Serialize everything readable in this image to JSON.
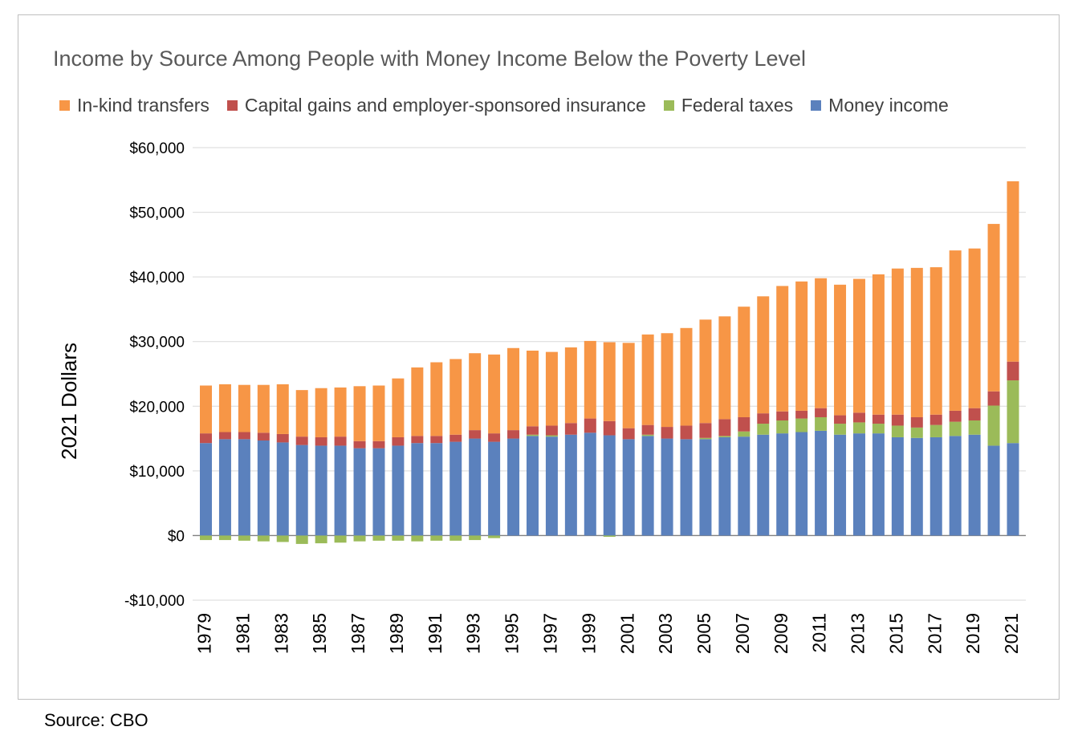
{
  "source": "Source: CBO",
  "chart_data": {
    "type": "bar",
    "stacked": true,
    "title": "Income by Source Among People with Money Income Below the Poverty Level",
    "xlabel": "",
    "ylabel": "2021 Dollars",
    "ylim": [
      -10000,
      60000
    ],
    "yticks": [
      -10000,
      0,
      10000,
      20000,
      30000,
      40000,
      50000,
      60000
    ],
    "ytick_labels": [
      "-$10,000",
      "$0",
      "$10,000",
      "$20,000",
      "$30,000",
      "$40,000",
      "$50,000",
      "$60,000"
    ],
    "grid": true,
    "legend_position": "top",
    "categories": [
      1979,
      1980,
      1981,
      1982,
      1983,
      1984,
      1985,
      1986,
      1987,
      1988,
      1989,
      1990,
      1991,
      1992,
      1993,
      1994,
      1995,
      1996,
      1997,
      1998,
      1999,
      2000,
      2001,
      2002,
      2003,
      2004,
      2005,
      2006,
      2007,
      2008,
      2009,
      2010,
      2011,
      2012,
      2013,
      2014,
      2015,
      2016,
      2017,
      2018,
      2019,
      2020,
      2021
    ],
    "xtick_labels": [
      "1979",
      "1981",
      "1983",
      "1985",
      "1987",
      "1989",
      "1991",
      "1993",
      "1995",
      "1997",
      "1999",
      "2001",
      "2003",
      "2005",
      "2007",
      "2009",
      "2011",
      "2013",
      "2015",
      "2017",
      "2019",
      "2021"
    ],
    "legend": [
      "In-kind transfers",
      "Capital gains and employer-sponsored insurance",
      "Federal taxes",
      "Money income"
    ],
    "series": [
      {
        "name": "Money income",
        "color": "#5b81bd",
        "values": [
          14300,
          14900,
          14900,
          14700,
          14400,
          14000,
          13900,
          13900,
          13500,
          13500,
          13900,
          14300,
          14300,
          14500,
          15000,
          14500,
          15000,
          15400,
          15300,
          15600,
          15900,
          15500,
          14900,
          15400,
          15000,
          14900,
          14900,
          15200,
          15300,
          15600,
          15800,
          16000,
          16200,
          15600,
          15800,
          15800,
          15200,
          15100,
          15200,
          15400,
          15600,
          13900,
          14300
        ]
      },
      {
        "name": "Federal taxes",
        "color": "#9bbb59",
        "values": [
          -700,
          -700,
          -800,
          -900,
          -1000,
          -1300,
          -1200,
          -1100,
          -900,
          -800,
          -800,
          -900,
          -800,
          -800,
          -700,
          -400,
          0,
          200,
          200,
          0,
          0,
          -200,
          0,
          200,
          0,
          0,
          200,
          200,
          800,
          1700,
          2000,
          2100,
          2100,
          1700,
          1700,
          1500,
          1800,
          1600,
          1900,
          2200,
          2200,
          6200,
          9700
        ]
      },
      {
        "name": "Capital gains and employer-sponsored insurance",
        "color": "#c0504d",
        "values": [
          1500,
          1100,
          1100,
          1200,
          1300,
          1300,
          1300,
          1400,
          1100,
          1100,
          1300,
          1100,
          1100,
          1100,
          1300,
          1300,
          1300,
          1300,
          1500,
          1800,
          2200,
          2200,
          1700,
          1500,
          1800,
          2100,
          2300,
          2600,
          2200,
          1600,
          1400,
          1200,
          1400,
          1300,
          1500,
          1400,
          1700,
          1600,
          1600,
          1700,
          1900,
          2200,
          2900
        ]
      },
      {
        "name": "In-kind transfers",
        "color": "#f79646",
        "values": [
          7400,
          7400,
          7300,
          7400,
          7700,
          7200,
          7600,
          7600,
          8500,
          8600,
          9100,
          10600,
          11400,
          11700,
          11900,
          12200,
          12700,
          11700,
          11400,
          11700,
          12000,
          12200,
          13200,
          14000,
          14500,
          15100,
          16000,
          15900,
          17100,
          18100,
          19400,
          20000,
          20100,
          20200,
          20700,
          21700,
          22600,
          23100,
          22800,
          24800,
          24700,
          25900,
          27900
        ]
      }
    ]
  }
}
